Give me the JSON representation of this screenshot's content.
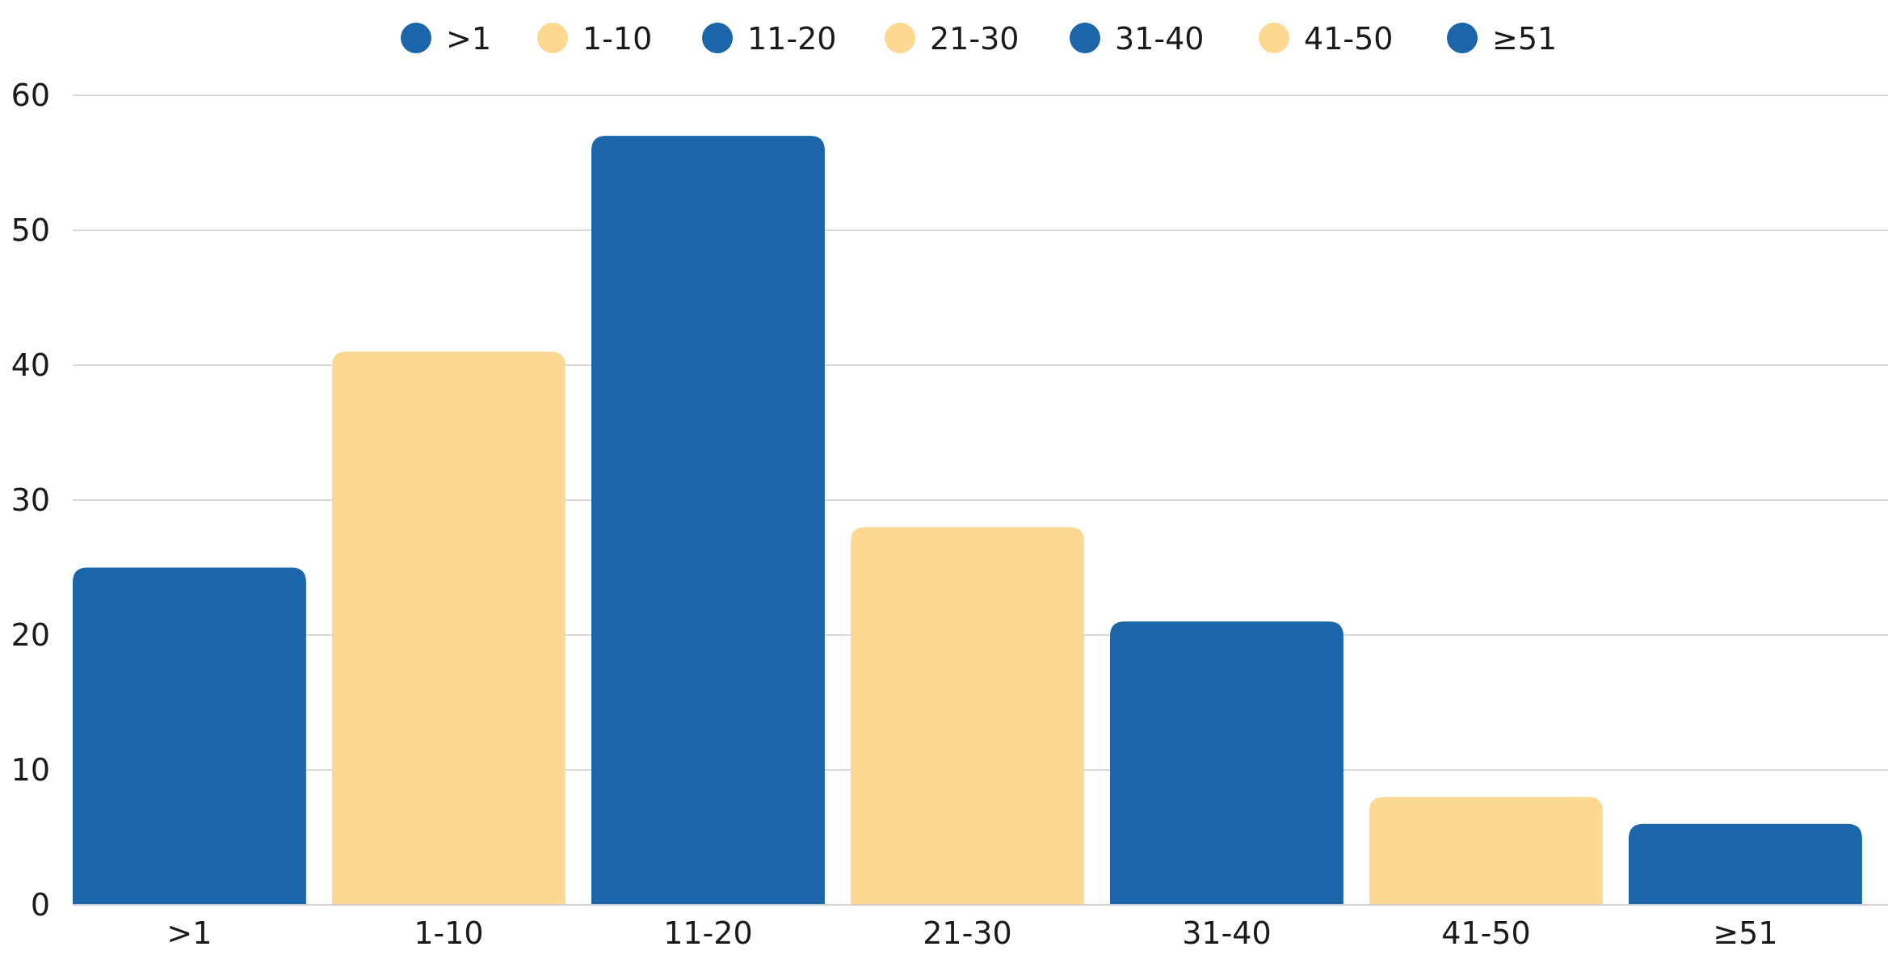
{
  "chart_data": {
    "type": "bar",
    "categories": [
      ">1",
      "1-10",
      "11-20",
      "21-30",
      "31-40",
      "41-50",
      "≥51"
    ],
    "values": [
      25,
      41,
      57,
      28,
      21,
      8,
      6
    ],
    "colors": [
      "#1b66aa",
      "#fdd891",
      "#1b66aa",
      "#fdd891",
      "#1b66aa",
      "#fdd891",
      "#1b66aa"
    ],
    "ylim": [
      0,
      60
    ],
    "yticks": [
      0,
      10,
      20,
      30,
      40,
      50,
      60
    ],
    "grid": true,
    "legend": {
      "position": "top-center",
      "entries": [
        ">1",
        "1-10",
        "11-20",
        "21-30",
        "31-40",
        "41-50",
        "≥51"
      ]
    }
  }
}
